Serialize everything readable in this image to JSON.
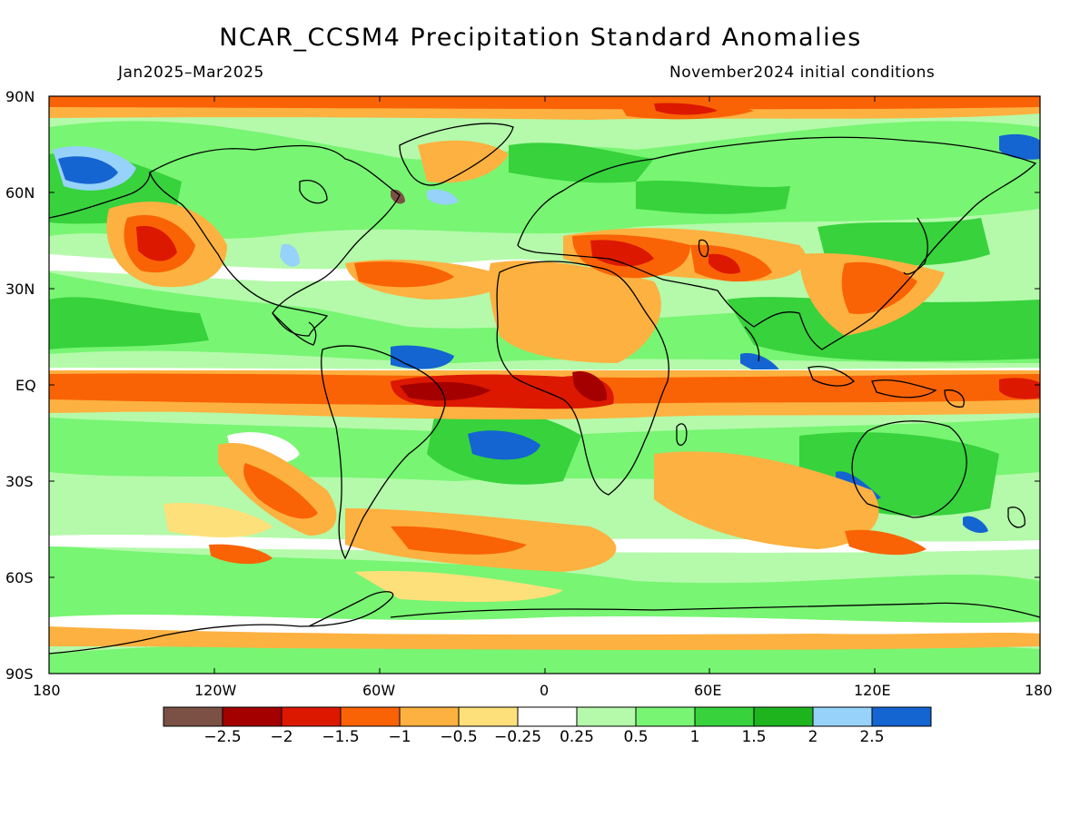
{
  "title": "NCAR_CCSM4 Precipitation Standard Anomalies",
  "period": "Jan2025–Mar2025",
  "init": "November2024 initial conditions",
  "lat_labels": [
    "90N",
    "60N",
    "30N",
    "EQ",
    "30S",
    "60S",
    "90S"
  ],
  "lon_labels": [
    "180",
    "120W",
    "60W",
    "0",
    "60E",
    "120E",
    "180"
  ],
  "colorbar": {
    "colors": [
      "#7a5144",
      "#a50000",
      "#dc1800",
      "#f96305",
      "#fdb140",
      "#fee07a",
      "#ffffff",
      "#b4faaa",
      "#78f573",
      "#37d23c",
      "#1eb41e",
      "#96d2fa",
      "#1464d2"
    ],
    "labels": [
      "−2.5",
      "−2",
      "−1.5",
      "−1",
      "−0.5",
      "−0.25",
      "0.25",
      "0.5",
      "1",
      "1.5",
      "2",
      "2.5"
    ]
  }
}
